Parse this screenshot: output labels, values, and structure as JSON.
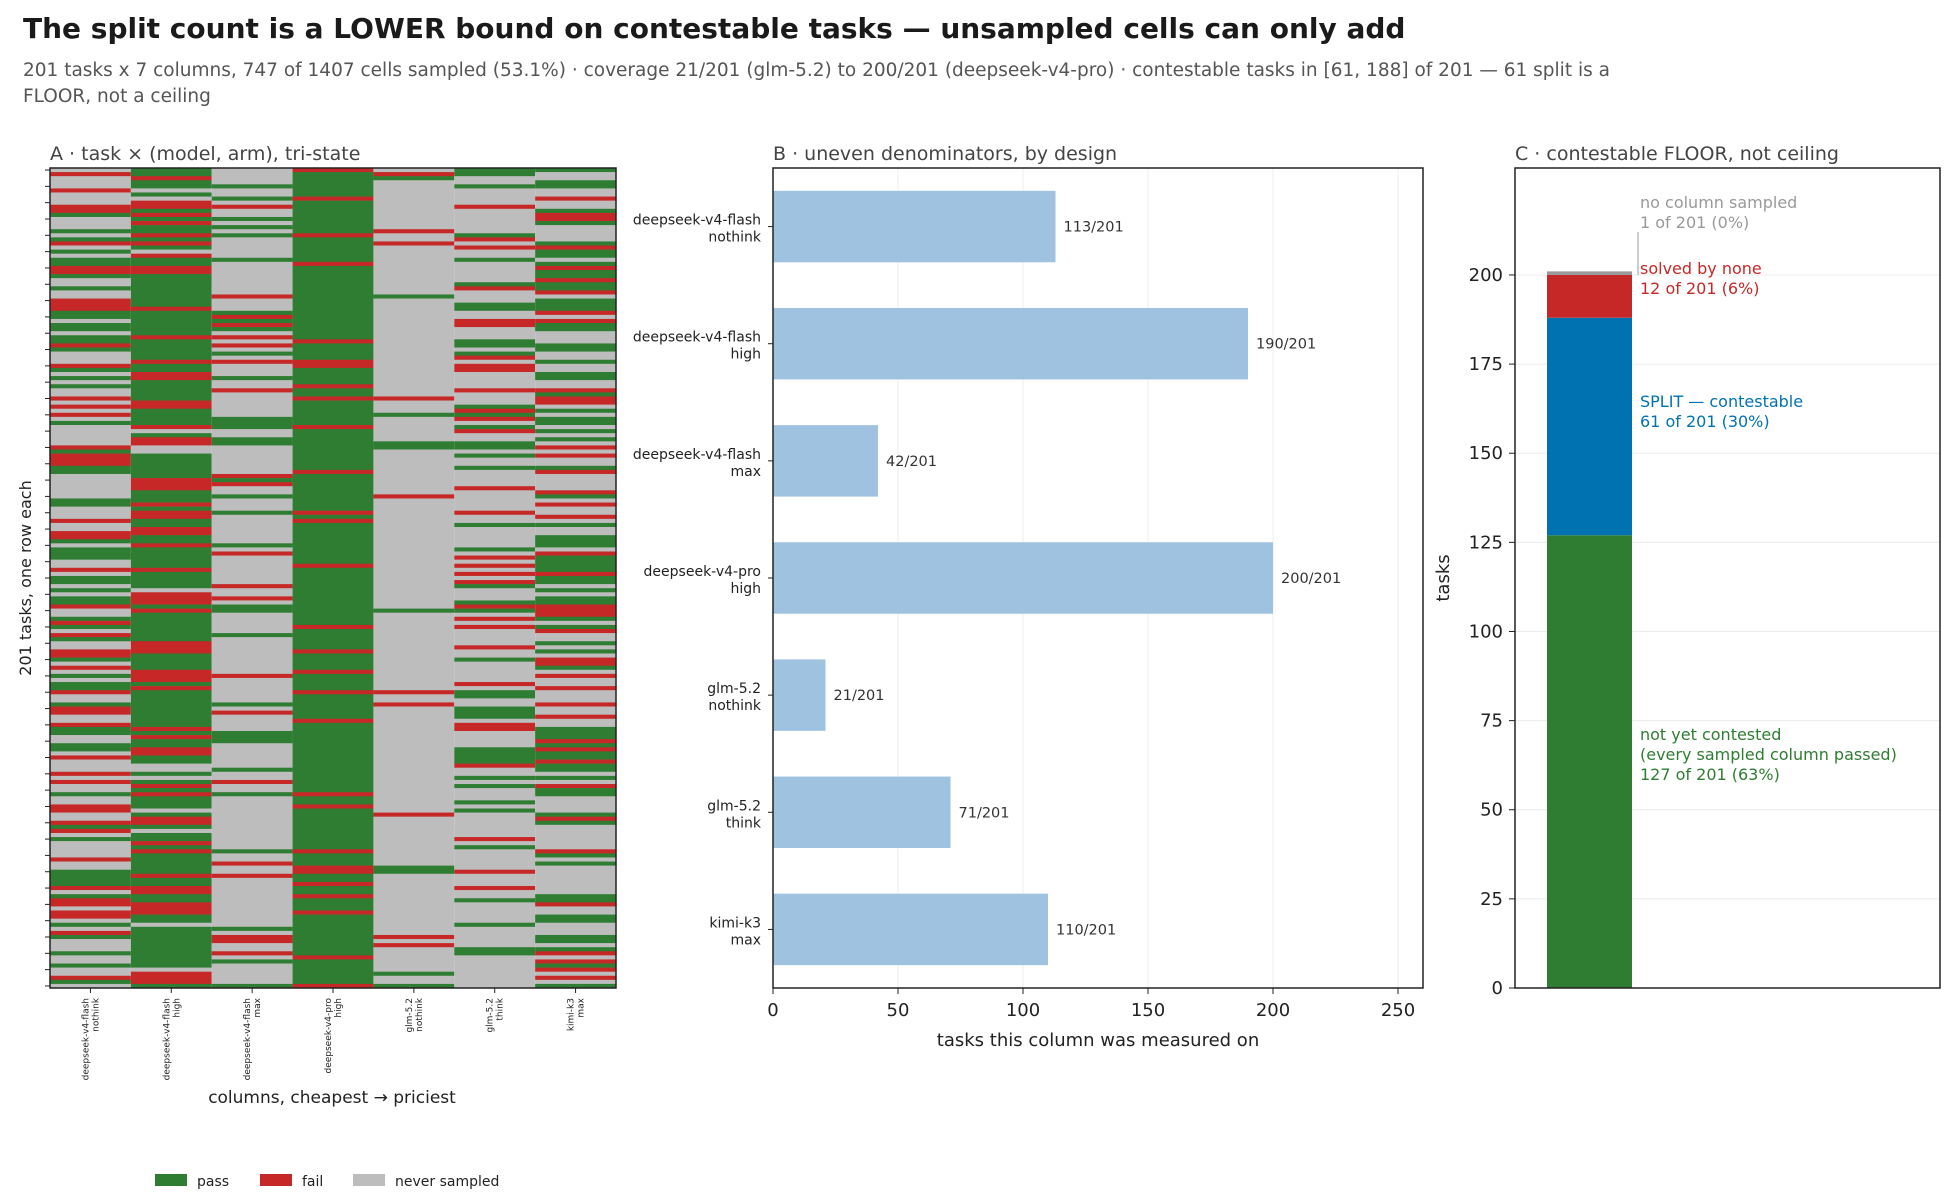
{
  "figure": {
    "title": "The split count is a LOWER bound on contestable tasks — unsampled cells can only add",
    "subtitle": "201 tasks x 7 columns, 747 of 1407 cells sampled (53.1%) · coverage 21/201 (glm-5.2) to 200/201 (deepseek-v4-pro) · contestable tasks in [61, 188] of 201 — 61 split is a FLOOR, not a ceiling"
  },
  "colors": {
    "pass": "#2e7d32",
    "fail": "#c62828",
    "never": "#bdbdbd",
    "bar": "#9fc2e0",
    "split": "#0072b2",
    "nosample": "#999999"
  },
  "chart_data": [
    {
      "type": "heatmap",
      "title": "A · task × (model, arm), tri-state",
      "xlabel": "columns, cheapest → priciest",
      "ylabel": "201 tasks, one row each",
      "columns": [
        {
          "line1": "deepseek-v4-flash",
          "line2": "nothink"
        },
        {
          "line1": "deepseek-v4-flash",
          "line2": "high"
        },
        {
          "line1": "deepseek-v4-flash",
          "line2": "max"
        },
        {
          "line1": "deepseek-v4-pro",
          "line2": "high"
        },
        {
          "line1": "glm-5.2",
          "line2": "nothink"
        },
        {
          "line1": "glm-5.2",
          "line2": "think"
        },
        {
          "line1": "kimi-k3",
          "line2": "max"
        }
      ],
      "n_rows": 201,
      "sampled_per_column": [
        113,
        190,
        42,
        200,
        21,
        71,
        110
      ],
      "legend": [
        {
          "key": "pass",
          "label": "pass"
        },
        {
          "key": "fail",
          "label": "fail"
        },
        {
          "key": "never",
          "label": "never sampled"
        }
      ]
    },
    {
      "type": "bar",
      "title": "B · uneven denominators, by design",
      "xlabel": "tasks this column was measured on",
      "categories": [
        {
          "line1": "deepseek-v4-flash",
          "line2": "nothink"
        },
        {
          "line1": "deepseek-v4-flash",
          "line2": "high"
        },
        {
          "line1": "deepseek-v4-flash",
          "line2": "max"
        },
        {
          "line1": "deepseek-v4-pro",
          "line2": "high"
        },
        {
          "line1": "glm-5.2",
          "line2": "nothink"
        },
        {
          "line1": "glm-5.2",
          "line2": "think"
        },
        {
          "line1": "kimi-k3",
          "line2": "max"
        }
      ],
      "values": [
        113,
        190,
        42,
        200,
        21,
        71,
        110
      ],
      "value_labels": [
        "113/201",
        "190/201",
        "42/201",
        "200/201",
        "21/201",
        "71/201",
        "110/201"
      ],
      "xlim": [
        0,
        260
      ],
      "xticks": [
        0,
        50,
        100,
        150,
        200,
        250
      ]
    },
    {
      "type": "bar",
      "stacked": true,
      "title": "C · contestable FLOOR, not ceiling",
      "ylabel": "tasks",
      "ylim": [
        0,
        230
      ],
      "yticks": [
        0,
        25,
        50,
        75,
        100,
        125,
        150,
        175,
        200
      ],
      "segments": [
        {
          "key": "green",
          "value": 127,
          "color": "#2e7d32",
          "label1": "not yet contested",
          "label2": "(every sampled column passed)",
          "label3": "127 of 201  (63%)"
        },
        {
          "key": "blue",
          "value": 61,
          "color": "#0072b2",
          "label1": "SPLIT — contestable",
          "label2": "61 of 201  (30%)"
        },
        {
          "key": "red",
          "value": 12,
          "color": "#c62828",
          "label1": "solved by none",
          "label2": "12 of 201  (6%)"
        },
        {
          "key": "gray",
          "value": 1,
          "color": "#999999",
          "label1": "no column sampled",
          "label2": "1 of 201  (0%)"
        }
      ]
    }
  ]
}
